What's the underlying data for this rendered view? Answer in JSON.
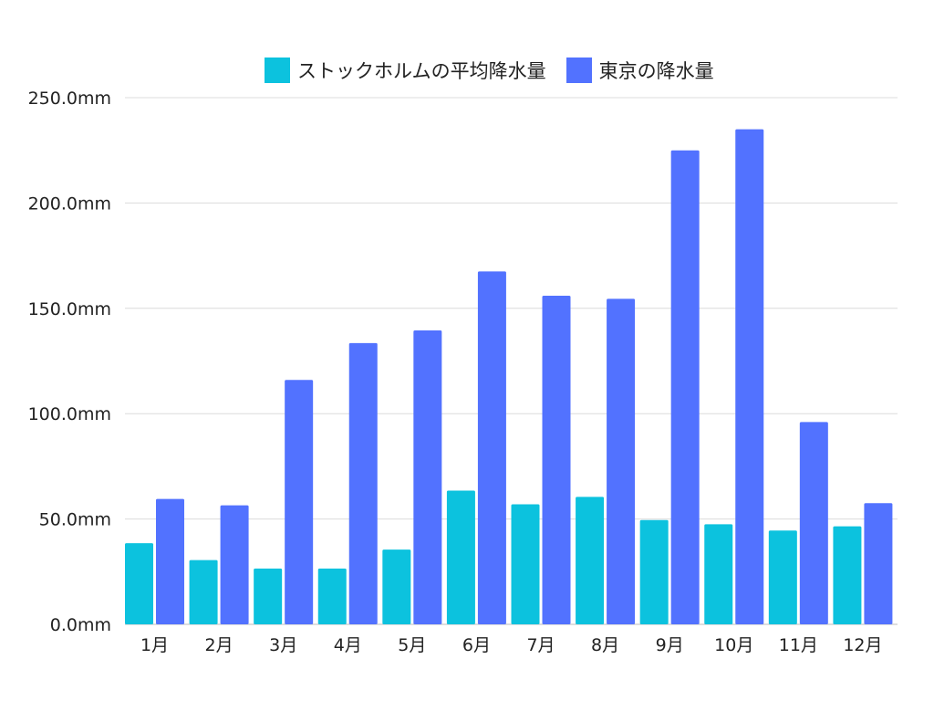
{
  "chart_data": {
    "type": "bar",
    "categories": [
      "1月",
      "2月",
      "3月",
      "4月",
      "5月",
      "6月",
      "7月",
      "8月",
      "9月",
      "10月",
      "11月",
      "12月"
    ],
    "series": [
      {
        "name": "ストックホルムの平均降水量",
        "color": "#0cc2de",
        "values": [
          38.5,
          30.5,
          26.5,
          26.5,
          35.5,
          63.5,
          57,
          60.5,
          49.5,
          47.5,
          44.5,
          46.5
        ]
      },
      {
        "name": "東京の降水量",
        "color": "#5272ff",
        "values": [
          59.5,
          56.5,
          116,
          133.5,
          139.5,
          167.5,
          156,
          154.5,
          225,
          235,
          96,
          57.5
        ]
      }
    ],
    "yticks": [
      "0.0mm",
      "50.0mm",
      "100.0mm",
      "150.0mm",
      "200.0mm",
      "250.0mm"
    ],
    "ylim": [
      0,
      250
    ],
    "grid": true,
    "legend_position": "top"
  }
}
